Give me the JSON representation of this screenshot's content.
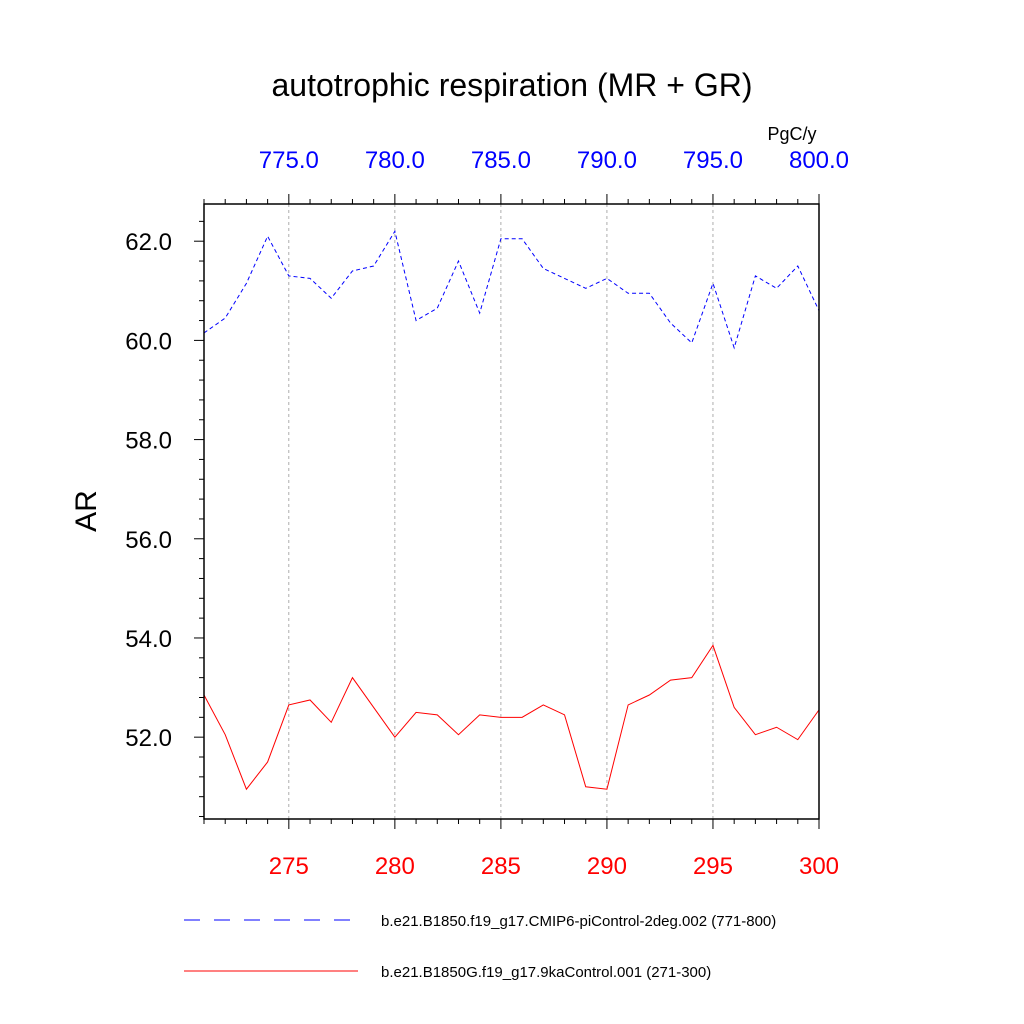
{
  "chart_data": {
    "type": "line",
    "title": "autotrophic respiration (MR + GR)",
    "units": "PgC/y",
    "ylabel": "AR",
    "ylim": [
      50.35,
      62.75
    ],
    "yticks": [
      52.0,
      54.0,
      56.0,
      58.0,
      60.0,
      62.0
    ],
    "ytick_labels": [
      "52.0",
      "54.0",
      "56.0",
      "58.0",
      "60.0",
      "62.0"
    ],
    "grid": "vertical-dashed",
    "legend_position": "bottom",
    "x_bottom": {
      "range": [
        271,
        300
      ],
      "ticks": [
        275,
        280,
        285,
        290,
        295,
        300
      ],
      "labels": [
        "275",
        "280",
        "285",
        "290",
        "295",
        "300"
      ],
      "color": "#ff0000"
    },
    "x_top": {
      "range": [
        771,
        800
      ],
      "ticks": [
        775,
        780,
        785,
        790,
        795,
        800
      ],
      "labels": [
        "775.0",
        "780.0",
        "785.0",
        "790.0",
        "795.0",
        "800.0"
      ],
      "color": "#0000ff"
    },
    "series": [
      {
        "name": "b.e21.B1850.f19_g17.CMIP6-piControl-2deg.002 (771-800)",
        "axis": "top",
        "color": "#0000ff",
        "dash": "dashed",
        "x": [
          771,
          772,
          773,
          774,
          775,
          776,
          777,
          778,
          779,
          780,
          781,
          782,
          783,
          784,
          785,
          786,
          787,
          788,
          789,
          790,
          791,
          792,
          793,
          794,
          795,
          796,
          797,
          798,
          799,
          800
        ],
        "y": [
          60.15,
          60.45,
          61.15,
          62.1,
          61.3,
          61.25,
          60.85,
          61.4,
          61.5,
          62.2,
          60.4,
          60.65,
          61.6,
          60.55,
          62.05,
          62.05,
          61.45,
          61.25,
          61.05,
          61.25,
          60.95,
          60.95,
          60.35,
          59.95,
          61.15,
          59.85,
          61.3,
          61.05,
          61.5,
          60.6
        ]
      },
      {
        "name": "b.e21.B1850G.f19_g17.9kaControl.001 (271-300)",
        "axis": "bottom",
        "color": "#ff0000",
        "dash": "solid",
        "x": [
          271,
          272,
          273,
          274,
          275,
          276,
          277,
          278,
          279,
          280,
          281,
          282,
          283,
          284,
          285,
          286,
          287,
          288,
          289,
          290,
          291,
          292,
          293,
          294,
          295,
          296,
          297,
          298,
          299,
          300
        ],
        "y": [
          52.85,
          52.05,
          50.95,
          51.5,
          52.65,
          52.75,
          52.3,
          53.2,
          52.6,
          52.0,
          52.5,
          52.45,
          52.05,
          52.45,
          52.4,
          52.4,
          52.65,
          52.45,
          51.0,
          50.95,
          52.65,
          52.85,
          53.15,
          53.2,
          53.85,
          52.6,
          52.05,
          52.2,
          51.95,
          52.55
        ]
      }
    ]
  }
}
